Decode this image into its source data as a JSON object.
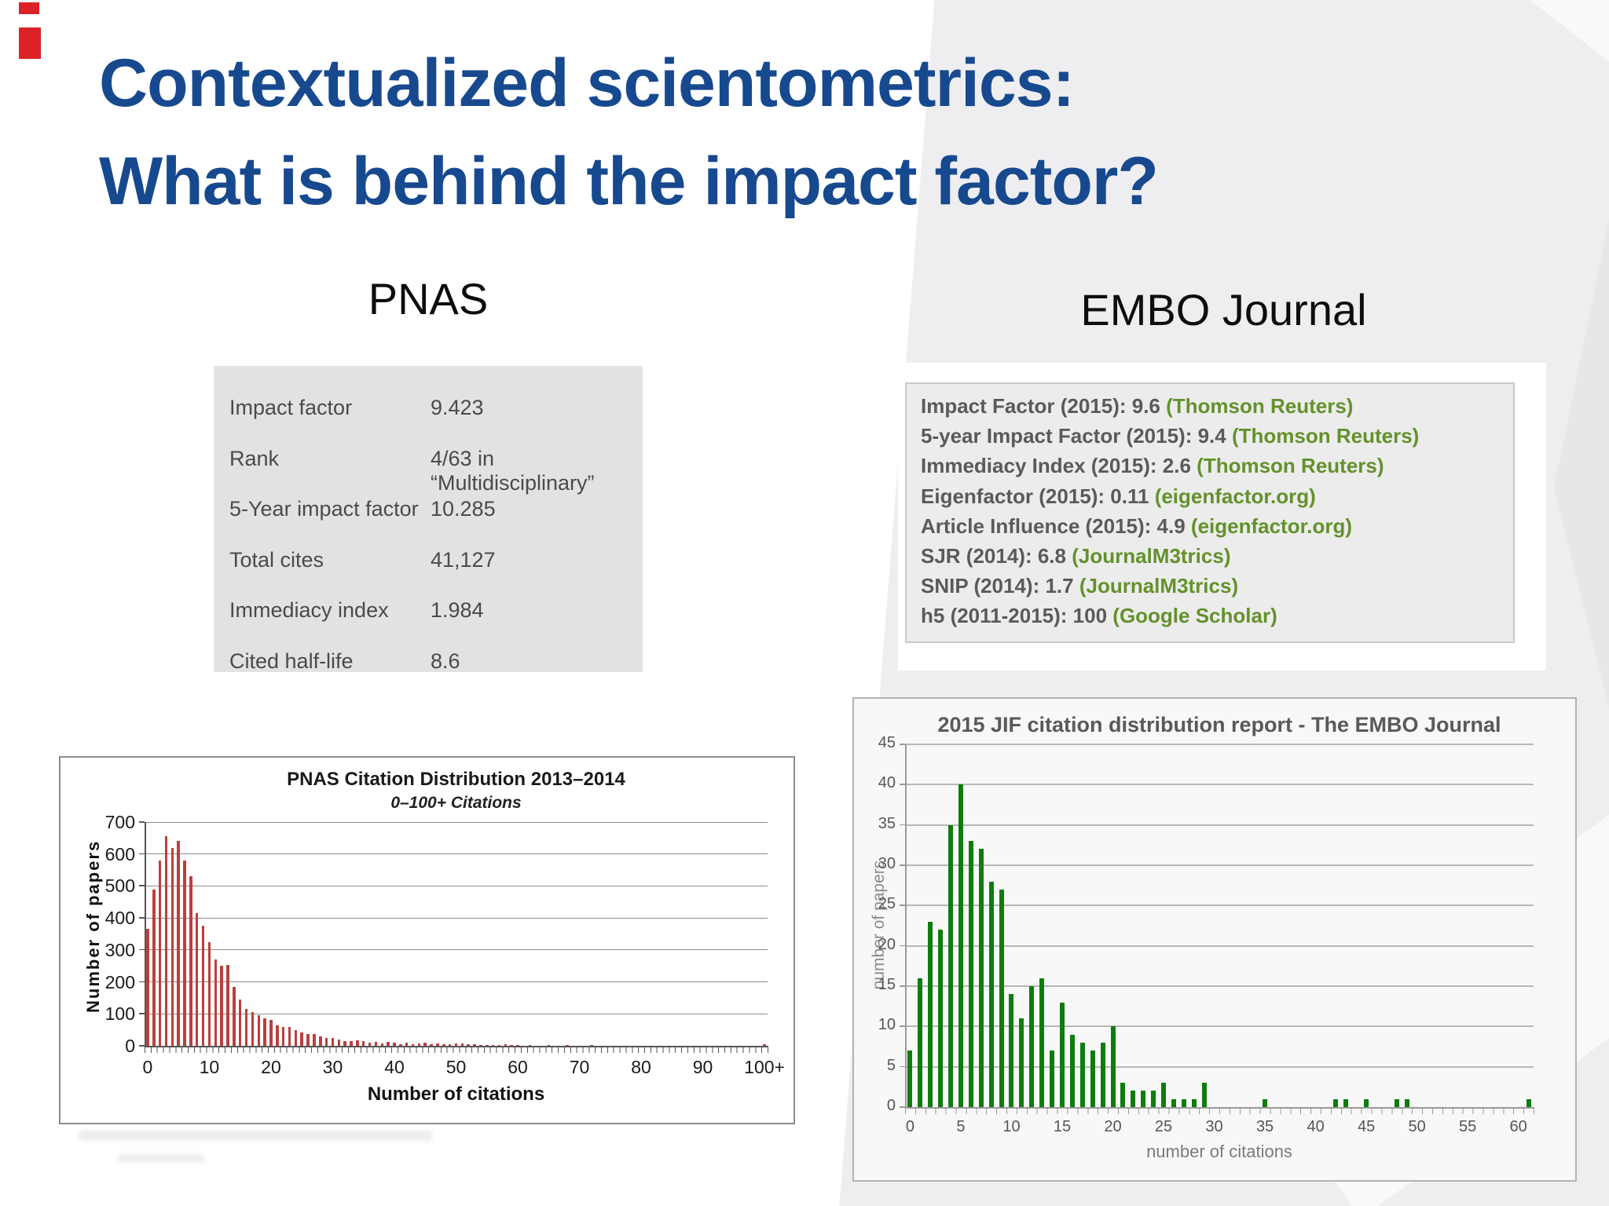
{
  "slide": {
    "title_line1": "Contextualized scientometrics:",
    "title_line2": "What is behind the impact factor?",
    "left_section_title": "PNAS",
    "right_section_title": "EMBO Journal"
  },
  "pnas_metrics": {
    "rows": [
      {
        "label": "Impact factor",
        "value": "9.423"
      },
      {
        "label": "Rank",
        "value": "4/63 in “Multidisciplinary”"
      },
      {
        "label": "5-Year impact factor",
        "value": "10.285"
      },
      {
        "label": "Total cites",
        "value": "41,127"
      },
      {
        "label": "Immediacy index",
        "value": "1.984"
      },
      {
        "label": "Cited half-life",
        "value": "8.6"
      }
    ]
  },
  "embo_metrics": {
    "lines": [
      {
        "label": "Impact Factor (2015): 9.6",
        "source": "(Thomson Reuters)"
      },
      {
        "label": "5-year Impact Factor (2015): 9.4",
        "source": "(Thomson Reuters)"
      },
      {
        "label": "Immediacy Index (2015): 2.6",
        "source": "(Thomson Reuters)"
      },
      {
        "label": "Eigenfactor (2015): 0.11",
        "source": "(eigenfactor.org)"
      },
      {
        "label": "Article Influence (2015): 4.9",
        "source": "(eigenfactor.org)"
      },
      {
        "label": "SJR (2014): 6.8",
        "source": "(JournalM3trics)"
      },
      {
        "label": "SNIP (2014): 1.7",
        "source": "(JournalM3trics)"
      },
      {
        "label": "h5 (2011-2015): 100",
        "source": "(Google Scholar)"
      }
    ]
  },
  "colors": {
    "title_blue": "#17498f",
    "pnas_bar_red": "#b9403e",
    "embo_bar_green": "#0e7c0e",
    "embo_source_green": "#64912c",
    "corner_mark_red": "#dd2128"
  },
  "chart_data": [
    {
      "type": "bar",
      "title": "PNAS Citation Distribution 2013–2014",
      "subtitle": "0–100+ Citations",
      "xlabel": "Number of citations",
      "ylabel": "Number of papers",
      "bar_color": "#b9403e",
      "ylim": [
        0,
        700
      ],
      "ytick_step": 100,
      "grid": true,
      "legend": "none",
      "xtick_positions": [
        0,
        10,
        20,
        30,
        40,
        50,
        60,
        70,
        80,
        90,
        100
      ],
      "xtick_labels": [
        "0",
        "10",
        "20",
        "30",
        "40",
        "50",
        "60",
        "70",
        "80",
        "90",
        "100+"
      ],
      "x_categories_note": "citations 0 through 100+",
      "values": [
        365,
        490,
        580,
        655,
        620,
        640,
        580,
        530,
        415,
        375,
        325,
        270,
        250,
        253,
        185,
        145,
        115,
        105,
        95,
        85,
        80,
        65,
        58,
        60,
        48,
        42,
        36,
        38,
        30,
        25,
        25,
        20,
        15,
        15,
        18,
        15,
        10,
        12,
        8,
        12,
        10,
        6,
        10,
        5,
        8,
        10,
        5,
        8,
        5,
        4,
        8,
        8,
        4,
        6,
        3,
        3,
        3,
        3,
        6,
        2,
        2,
        0,
        2,
        0,
        0,
        2,
        0,
        0,
        2,
        0,
        0,
        0,
        2,
        0,
        0,
        0,
        0,
        0,
        0,
        0,
        0,
        0,
        0,
        0,
        0,
        0,
        0,
        0,
        0,
        0,
        0,
        0,
        0,
        0,
        0,
        0,
        0,
        0,
        0,
        0,
        6
      ]
    },
    {
      "type": "bar",
      "title": "2015 JIF citation distribution report - The EMBO Journal",
      "subtitle": "",
      "xlabel": "number of citations",
      "ylabel": "number of papers",
      "bar_color": "#0e7c0e",
      "ylim": [
        0,
        45
      ],
      "ytick_step": 5,
      "grid": true,
      "legend": "none",
      "xtick_positions": [
        0,
        5,
        10,
        15,
        20,
        25,
        30,
        35,
        40,
        45,
        50,
        55,
        60
      ],
      "xtick_labels": [
        "0",
        "5",
        "10",
        "15",
        "20",
        "25",
        "30",
        "35",
        "40",
        "45",
        "50",
        "55",
        "60"
      ],
      "x_categories_note": "citations 0 through 61",
      "values": [
        7,
        16,
        23,
        22,
        35,
        40,
        33,
        32,
        28,
        27,
        14,
        11,
        15,
        16,
        7,
        13,
        9,
        8,
        7,
        8,
        10,
        3,
        2,
        2,
        2,
        3,
        1,
        1,
        1,
        3,
        0,
        0,
        0,
        0,
        0,
        1,
        0,
        0,
        0,
        0,
        0,
        0,
        1,
        1,
        0,
        1,
        0,
        0,
        1,
        1,
        0,
        0,
        0,
        0,
        0,
        0,
        0,
        0,
        0,
        0,
        0,
        1
      ]
    }
  ]
}
